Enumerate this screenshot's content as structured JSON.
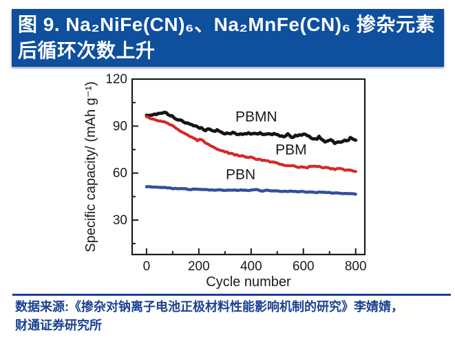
{
  "header": {
    "title_line1": "图 9. Na₂NiFe(CN)₆、Na₂MnFe(CN)₆ 掺杂元素",
    "title_line2": "后循环次数上升",
    "bg_color": "#0E4F9E",
    "text_color": "#FFFFFF"
  },
  "footer": {
    "source_line1": "数据来源:《掺杂对钠离子电池正极材料性能影响机制的研究》李婧婧，",
    "source_line2": "财通证券研究所",
    "text_color": "#1B4191",
    "divider_color": "#1B4191"
  },
  "chart_data": {
    "type": "scatter",
    "title": "",
    "xlabel": "Cycle number",
    "ylabel": "Specific capacity/ (mAh g⁻¹)",
    "xlim": [
      -55,
      835
    ],
    "ylim": [
      8,
      120
    ],
    "x_ticks_major": [
      0,
      200,
      400,
      600,
      800
    ],
    "x_ticks_minor": [
      100,
      300,
      500,
      700
    ],
    "y_ticks_major": [
      30,
      60,
      90,
      120
    ],
    "y_ticks_minor": [
      15,
      45,
      75,
      105
    ],
    "grid": false,
    "legend_position": "inline-labels",
    "axis_color": "#1a1a1a",
    "series": [
      {
        "name": "PBMN",
        "color": "#141414",
        "label": {
          "x": 420,
          "y": 93
        },
        "points": [
          [
            0,
            96.5
          ],
          [
            15,
            96.8
          ],
          [
            30,
            97.2
          ],
          [
            45,
            97.6
          ],
          [
            60,
            98.8
          ],
          [
            75,
            98.2
          ],
          [
            90,
            96.8
          ],
          [
            105,
            95.4
          ],
          [
            120,
            94.2
          ],
          [
            135,
            93.2
          ],
          [
            150,
            92.2
          ],
          [
            165,
            91.6
          ],
          [
            180,
            90.6
          ],
          [
            195,
            89.8
          ],
          [
            210,
            88.6
          ],
          [
            225,
            87.6
          ],
          [
            240,
            88.2
          ],
          [
            255,
            86.6
          ],
          [
            270,
            87.4
          ],
          [
            285,
            86.2
          ],
          [
            300,
            85.4
          ],
          [
            315,
            85.2
          ],
          [
            330,
            85.6
          ],
          [
            345,
            85.0
          ],
          [
            360,
            85.4
          ],
          [
            375,
            85.2
          ],
          [
            390,
            85.6
          ],
          [
            405,
            85.2
          ],
          [
            420,
            84.8
          ],
          [
            435,
            85.4
          ],
          [
            450,
            85.0
          ],
          [
            465,
            84.6
          ],
          [
            480,
            84.4
          ],
          [
            495,
            85.0
          ],
          [
            510,
            83.8
          ],
          [
            525,
            83.4
          ],
          [
            540,
            84.6
          ],
          [
            555,
            83.0
          ],
          [
            570,
            83.6
          ],
          [
            585,
            84.2
          ],
          [
            600,
            85.0
          ],
          [
            615,
            84.2
          ],
          [
            630,
            82.0
          ],
          [
            645,
            81.4
          ],
          [
            660,
            83.0
          ],
          [
            675,
            81.0
          ],
          [
            690,
            79.8
          ],
          [
            705,
            81.6
          ],
          [
            720,
            79.2
          ],
          [
            735,
            79.8
          ],
          [
            750,
            80.4
          ],
          [
            765,
            80.8
          ],
          [
            780,
            82.2
          ],
          [
            790,
            81.6
          ],
          [
            800,
            81.0
          ]
        ]
      },
      {
        "name": "PBM",
        "color": "#D42A28",
        "label": {
          "x": 553,
          "y": 72
        },
        "points": [
          [
            0,
            95.8
          ],
          [
            15,
            94.8
          ],
          [
            30,
            94.0
          ],
          [
            45,
            93.4
          ],
          [
            60,
            93.0
          ],
          [
            75,
            92.4
          ],
          [
            90,
            91.0
          ],
          [
            105,
            89.4
          ],
          [
            120,
            87.6
          ],
          [
            135,
            86.0
          ],
          [
            150,
            84.6
          ],
          [
            165,
            83.4
          ],
          [
            180,
            82.2
          ],
          [
            195,
            81.0
          ],
          [
            210,
            81.6
          ],
          [
            225,
            79.4
          ],
          [
            240,
            77.8
          ],
          [
            255,
            76.6
          ],
          [
            270,
            75.6
          ],
          [
            285,
            74.6
          ],
          [
            300,
            73.6
          ],
          [
            315,
            72.8
          ],
          [
            330,
            72.0
          ],
          [
            345,
            71.4
          ],
          [
            360,
            71.0
          ],
          [
            375,
            70.6
          ],
          [
            390,
            70.2
          ],
          [
            405,
            69.6
          ],
          [
            420,
            69.0
          ],
          [
            435,
            68.6
          ],
          [
            450,
            68.2
          ],
          [
            465,
            67.6
          ],
          [
            480,
            67.0
          ],
          [
            495,
            66.6
          ],
          [
            510,
            66.0
          ],
          [
            525,
            65.4
          ],
          [
            540,
            65.0
          ],
          [
            555,
            64.6
          ],
          [
            570,
            64.2
          ],
          [
            585,
            64.0
          ],
          [
            600,
            63.8
          ],
          [
            615,
            63.6
          ],
          [
            630,
            64.2
          ],
          [
            645,
            64.6
          ],
          [
            660,
            64.0
          ],
          [
            675,
            63.6
          ],
          [
            690,
            63.2
          ],
          [
            705,
            62.8
          ],
          [
            720,
            62.6
          ],
          [
            735,
            62.6
          ],
          [
            750,
            62.4
          ],
          [
            765,
            62.0
          ],
          [
            780,
            61.6
          ],
          [
            800,
            61.0
          ]
        ]
      },
      {
        "name": "PBN",
        "color": "#32509F",
        "label": {
          "x": 360,
          "y": 56
        },
        "points": [
          [
            0,
            51.4
          ],
          [
            40,
            51.0
          ],
          [
            80,
            50.4
          ],
          [
            120,
            50.0
          ],
          [
            160,
            49.6
          ],
          [
            200,
            49.5
          ],
          [
            240,
            49.2
          ],
          [
            280,
            49.1
          ],
          [
            320,
            49.0
          ],
          [
            360,
            49.0
          ],
          [
            400,
            49.0
          ],
          [
            425,
            49.4
          ],
          [
            445,
            48.6
          ],
          [
            465,
            49.0
          ],
          [
            490,
            48.6
          ],
          [
            520,
            48.5
          ],
          [
            560,
            48.3
          ],
          [
            600,
            48.1
          ],
          [
            640,
            47.8
          ],
          [
            680,
            47.6
          ],
          [
            720,
            47.3
          ],
          [
            760,
            47.0
          ],
          [
            800,
            46.5
          ]
        ]
      }
    ]
  }
}
